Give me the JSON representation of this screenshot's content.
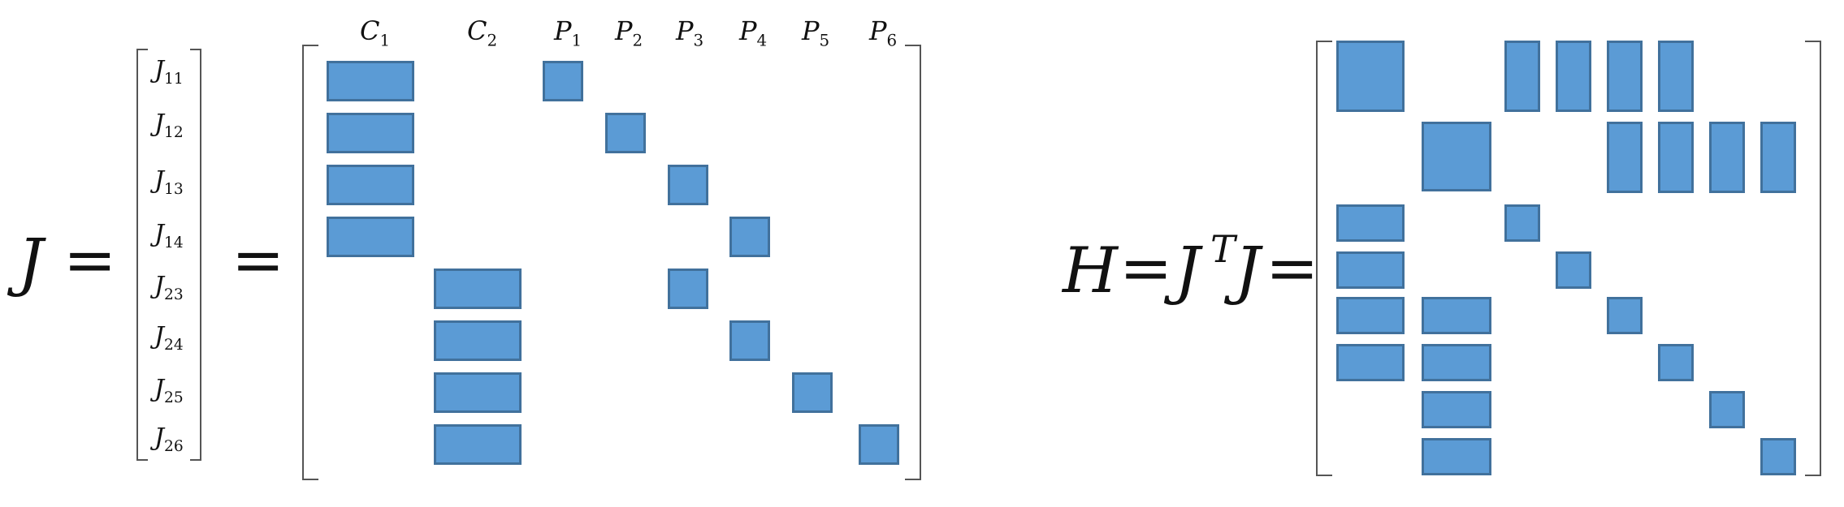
{
  "left": {
    "lhs": "J",
    "equals": "=",
    "equals2": "=",
    "rows": [
      {
        "base": "J",
        "sub": "11"
      },
      {
        "base": "J",
        "sub": "12"
      },
      {
        "base": "J",
        "sub": "13"
      },
      {
        "base": "J",
        "sub": "14"
      },
      {
        "base": "J",
        "sub": "23"
      },
      {
        "base": "J",
        "sub": "24"
      },
      {
        "base": "J",
        "sub": "25"
      },
      {
        "base": "J",
        "sub": "26"
      }
    ],
    "columns": [
      {
        "base": "C",
        "sub": "1"
      },
      {
        "base": "C",
        "sub": "2"
      },
      {
        "base": "P",
        "sub": "1"
      },
      {
        "base": "P",
        "sub": "2"
      },
      {
        "base": "P",
        "sub": "3"
      },
      {
        "base": "P",
        "sub": "4"
      },
      {
        "base": "P",
        "sub": "5"
      },
      {
        "base": "P",
        "sub": "6"
      }
    ],
    "pattern": [
      [
        1,
        0,
        1,
        0,
        0,
        0,
        0,
        0
      ],
      [
        1,
        0,
        0,
        1,
        0,
        0,
        0,
        0
      ],
      [
        1,
        0,
        0,
        0,
        1,
        0,
        0,
        0
      ],
      [
        1,
        0,
        0,
        0,
        0,
        1,
        0,
        0
      ],
      [
        0,
        1,
        0,
        0,
        1,
        0,
        0,
        0
      ],
      [
        0,
        1,
        0,
        0,
        0,
        1,
        0,
        0
      ],
      [
        0,
        1,
        0,
        0,
        0,
        0,
        1,
        0
      ],
      [
        0,
        1,
        0,
        0,
        0,
        0,
        0,
        1
      ]
    ]
  },
  "right": {
    "lhs": "H",
    "equals": "=",
    "J": "J",
    "T": "T",
    "J2": "J",
    "equals2": "=",
    "pattern": [
      [
        1,
        0,
        1,
        1,
        1,
        1,
        0,
        0
      ],
      [
        0,
        1,
        0,
        0,
        1,
        1,
        1,
        1
      ],
      [
        1,
        0,
        1,
        0,
        0,
        0,
        0,
        0
      ],
      [
        1,
        0,
        0,
        1,
        0,
        0,
        0,
        0
      ],
      [
        1,
        1,
        0,
        0,
        1,
        0,
        0,
        0
      ],
      [
        1,
        1,
        0,
        0,
        0,
        1,
        0,
        0
      ],
      [
        0,
        1,
        0,
        0,
        0,
        0,
        1,
        0
      ],
      [
        0,
        1,
        0,
        0,
        0,
        0,
        0,
        1
      ]
    ]
  },
  "colors": {
    "block_fill": "#5b9bd5",
    "block_border": "#41719c",
    "bracket": "#555555"
  }
}
